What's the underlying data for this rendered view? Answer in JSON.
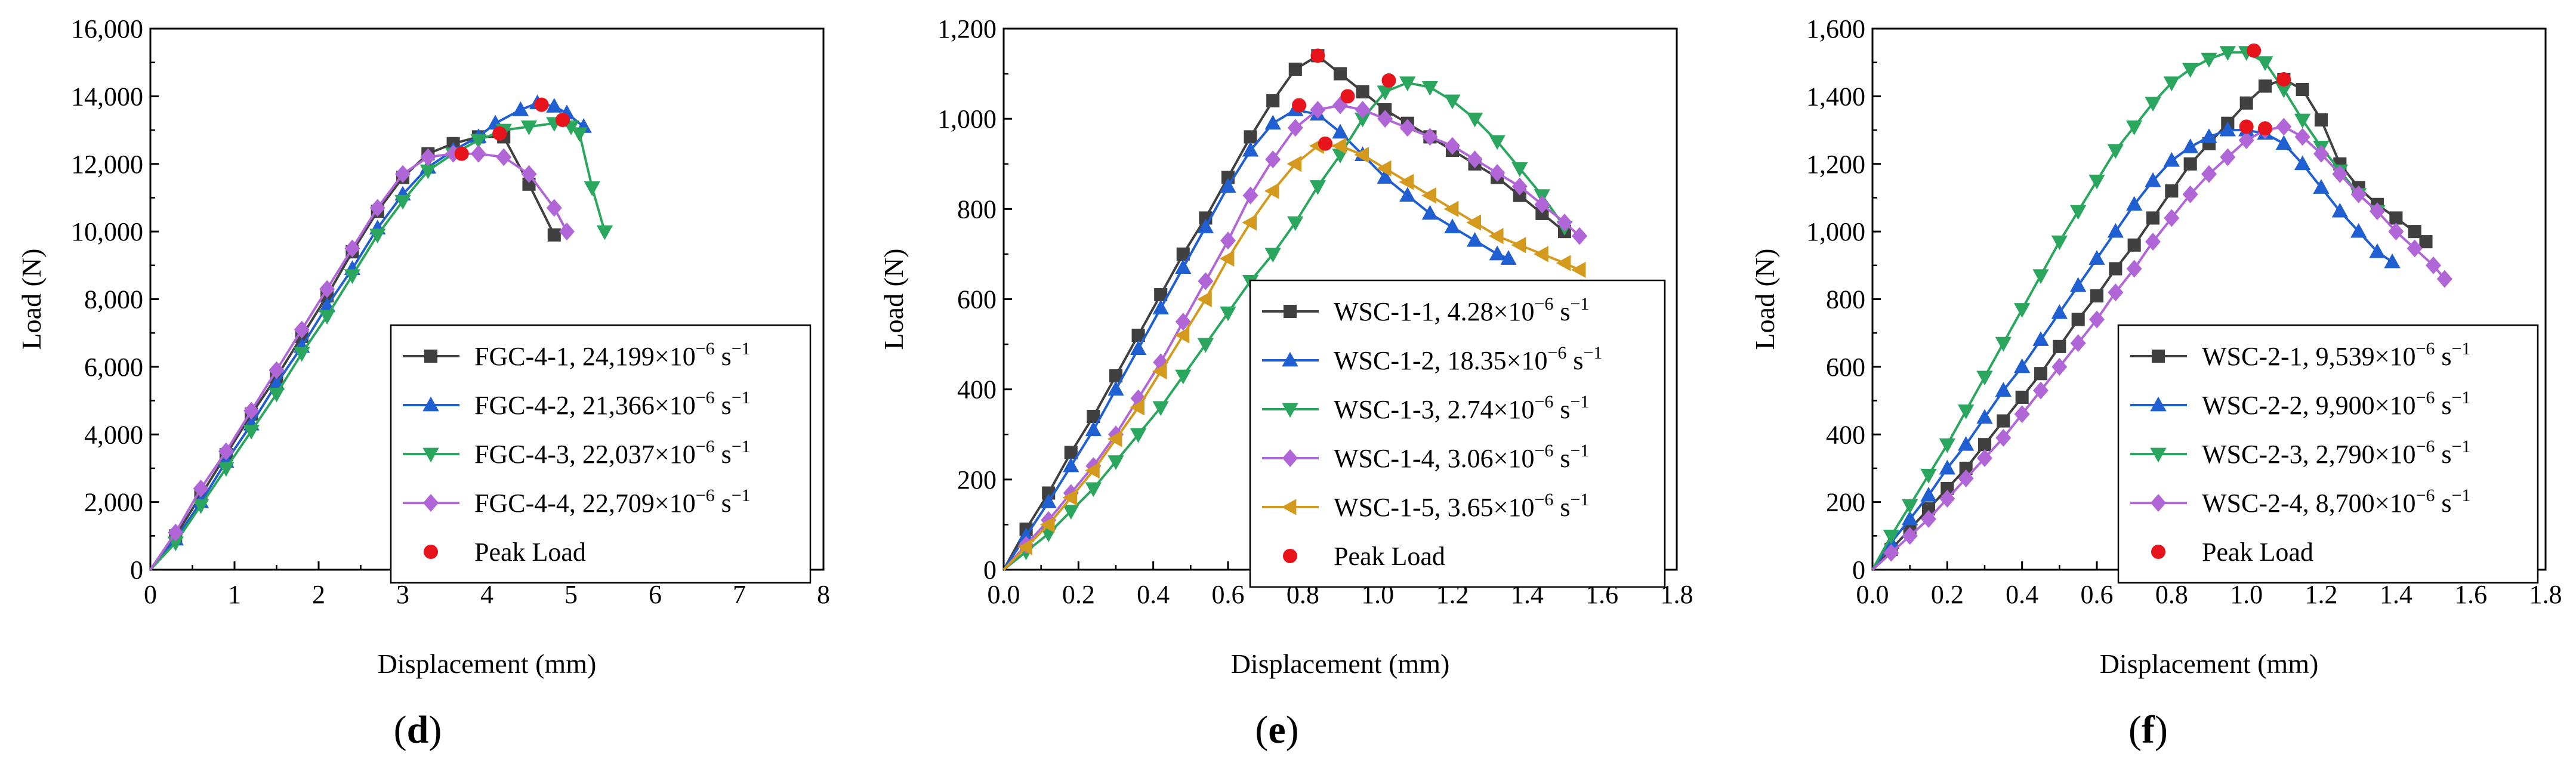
{
  "chart_data": [
    {
      "type": "line",
      "panel_label": "d",
      "xlabel": "Displacement (mm)",
      "ylabel": "Load (N)",
      "xlim": [
        0,
        8
      ],
      "ylim": [
        0,
        16000
      ],
      "xticks": [
        "0",
        "1",
        "2",
        "3",
        "4",
        "5",
        "6",
        "7",
        "8"
      ],
      "yticks": [
        "0",
        "2,000",
        "4,000",
        "6,000",
        "8,000",
        "10,000",
        "12,000",
        "14,000",
        "16,000"
      ],
      "legend_position": "bottom-right",
      "series": [
        {
          "name": "FGC-4-1",
          "rate": "24,199",
          "color": "#404040",
          "marker": "square",
          "x": [
            0,
            0.3,
            0.6,
            0.9,
            1.2,
            1.5,
            1.8,
            2.1,
            2.4,
            2.7,
            3.0,
            3.3,
            3.6,
            3.9,
            4.2,
            4.5,
            4.8
          ],
          "y": [
            0,
            1000,
            2200,
            3400,
            4600,
            5700,
            6900,
            8100,
            9400,
            10600,
            11600,
            12300,
            12600,
            12800,
            12800,
            11400,
            9900
          ]
        },
        {
          "name": "FGC-4-2",
          "rate": "21,366",
          "color": "#1f5fd1",
          "marker": "triangle-up",
          "x": [
            0,
            0.3,
            0.6,
            0.9,
            1.2,
            1.5,
            1.8,
            2.1,
            2.4,
            2.7,
            3.0,
            3.3,
            3.6,
            3.9,
            4.1,
            4.4,
            4.6,
            4.8,
            4.95,
            5.15
          ],
          "y": [
            0,
            900,
            2000,
            3200,
            4300,
            5500,
            6600,
            7800,
            8900,
            10100,
            11100,
            11900,
            12400,
            12800,
            13200,
            13600,
            13800,
            13700,
            13500,
            13100
          ]
        },
        {
          "name": "FGC-4-3",
          "rate": "22,037",
          "color": "#2aa65e",
          "marker": "triangle-down",
          "x": [
            0,
            0.3,
            0.6,
            0.9,
            1.2,
            1.5,
            1.8,
            2.1,
            2.4,
            2.7,
            3.0,
            3.3,
            3.6,
            3.9,
            4.2,
            4.5,
            4.8,
            5.0,
            5.1,
            5.25,
            5.4
          ],
          "y": [
            0,
            800,
            1900,
            3000,
            4100,
            5200,
            6400,
            7500,
            8700,
            9900,
            10900,
            11800,
            12300,
            12700,
            13000,
            13100,
            13200,
            13100,
            12900,
            11300,
            10000
          ]
        },
        {
          "name": "FGC-4-4",
          "rate": "22,709",
          "color": "#b066d6",
          "marker": "diamond",
          "x": [
            0,
            0.3,
            0.6,
            0.9,
            1.2,
            1.5,
            1.8,
            2.1,
            2.4,
            2.7,
            3.0,
            3.3,
            3.6,
            3.9,
            4.2,
            4.5,
            4.8,
            4.95
          ],
          "y": [
            0,
            1100,
            2400,
            3500,
            4700,
            5900,
            7100,
            8300,
            9500,
            10700,
            11700,
            12200,
            12300,
            12300,
            12200,
            11700,
            10700,
            10000
          ]
        }
      ],
      "peaks": {
        "name": "Peak Load",
        "color": "#e8141b",
        "x": [
          3.7,
          4.15,
          4.65,
          4.9
        ],
        "y": [
          12300,
          12900,
          13750,
          13300
        ]
      }
    },
    {
      "type": "line",
      "panel_label": "e",
      "xlabel": "Displacement (mm)",
      "ylabel": "Load (N)",
      "xlim": [
        0,
        1.8
      ],
      "ylim": [
        0,
        1200
      ],
      "xticks": [
        "0.0",
        "0.2",
        "0.4",
        "0.6",
        "0.8",
        "1.0",
        "1.2",
        "1.4",
        "1.6",
        "1.8"
      ],
      "yticks": [
        "0",
        "200",
        "400",
        "600",
        "800",
        "1,000",
        "1,200"
      ],
      "legend_position": "bottom-right",
      "series": [
        {
          "name": "WSC-1-1",
          "rate": "4.28",
          "color": "#404040",
          "marker": "square",
          "x": [
            0,
            0.06,
            0.12,
            0.18,
            0.24,
            0.3,
            0.36,
            0.42,
            0.48,
            0.54,
            0.6,
            0.66,
            0.72,
            0.78,
            0.84,
            0.9,
            0.96,
            1.02,
            1.08,
            1.14,
            1.2,
            1.26,
            1.32,
            1.38,
            1.44,
            1.5
          ],
          "y": [
            0,
            90,
            170,
            260,
            340,
            430,
            520,
            610,
            700,
            780,
            870,
            960,
            1040,
            1110,
            1140,
            1100,
            1060,
            1020,
            990,
            960,
            930,
            900,
            870,
            830,
            790,
            750
          ]
        },
        {
          "name": "WSC-1-2",
          "rate": "18.35",
          "color": "#1f5fd1",
          "marker": "triangle-up",
          "x": [
            0,
            0.06,
            0.12,
            0.18,
            0.24,
            0.3,
            0.36,
            0.42,
            0.48,
            0.54,
            0.6,
            0.66,
            0.72,
            0.78,
            0.84,
            0.9,
            0.96,
            1.02,
            1.08,
            1.14,
            1.2,
            1.26,
            1.32,
            1.35
          ],
          "y": [
            0,
            75,
            150,
            230,
            310,
            400,
            490,
            580,
            670,
            760,
            850,
            930,
            990,
            1020,
            1010,
            970,
            920,
            870,
            830,
            790,
            760,
            730,
            700,
            690
          ]
        },
        {
          "name": "WSC-1-3",
          "rate": "2.74",
          "color": "#2aa65e",
          "marker": "triangle-down",
          "x": [
            0,
            0.06,
            0.12,
            0.18,
            0.24,
            0.3,
            0.36,
            0.42,
            0.48,
            0.54,
            0.6,
            0.66,
            0.72,
            0.78,
            0.84,
            0.9,
            0.96,
            1.02,
            1.08,
            1.14,
            1.2,
            1.26,
            1.32,
            1.38,
            1.44,
            1.5
          ],
          "y": [
            0,
            40,
            80,
            130,
            180,
            240,
            300,
            360,
            430,
            500,
            570,
            640,
            700,
            770,
            850,
            920,
            1000,
            1060,
            1080,
            1070,
            1040,
            1000,
            950,
            890,
            830,
            760
          ]
        },
        {
          "name": "WSC-1-4",
          "rate": "3.06",
          "color": "#b066d6",
          "marker": "diamond",
          "x": [
            0,
            0.06,
            0.12,
            0.18,
            0.24,
            0.3,
            0.36,
            0.42,
            0.48,
            0.54,
            0.6,
            0.66,
            0.72,
            0.78,
            0.84,
            0.9,
            0.96,
            1.02,
            1.08,
            1.14,
            1.2,
            1.26,
            1.32,
            1.38,
            1.44,
            1.5,
            1.54
          ],
          "y": [
            0,
            55,
            110,
            170,
            230,
            300,
            380,
            460,
            550,
            640,
            730,
            830,
            910,
            980,
            1020,
            1030,
            1020,
            1000,
            980,
            960,
            940,
            910,
            880,
            850,
            810,
            770,
            740
          ]
        },
        {
          "name": "WSC-1-5",
          "rate": "3.65",
          "color": "#d49a1e",
          "marker": "triangle-left",
          "x": [
            0,
            0.06,
            0.12,
            0.18,
            0.24,
            0.3,
            0.36,
            0.42,
            0.48,
            0.54,
            0.6,
            0.66,
            0.72,
            0.78,
            0.84,
            0.9,
            0.96,
            1.02,
            1.08,
            1.14,
            1.2,
            1.26,
            1.32,
            1.38,
            1.44,
            1.5,
            1.54
          ],
          "y": [
            0,
            50,
            100,
            160,
            220,
            290,
            360,
            440,
            520,
            600,
            690,
            770,
            840,
            900,
            940,
            940,
            920,
            890,
            860,
            830,
            800,
            770,
            740,
            720,
            700,
            680,
            665
          ]
        }
      ],
      "peaks": {
        "name": "Peak Load",
        "color": "#e8141b",
        "x": [
          0.84,
          0.79,
          1.03,
          0.92,
          0.86
        ],
        "y": [
          1140,
          1030,
          1085,
          1050,
          945
        ]
      }
    },
    {
      "type": "line",
      "panel_label": "f",
      "xlabel": "Displacement (mm)",
      "ylabel": "Load (N)",
      "xlim": [
        0,
        1.8
      ],
      "ylim": [
        0,
        1600
      ],
      "xticks": [
        "0.0",
        "0.2",
        "0.4",
        "0.6",
        "0.8",
        "1.0",
        "1.2",
        "1.4",
        "1.6",
        "1.8"
      ],
      "yticks": [
        "0",
        "200",
        "400",
        "600",
        "800",
        "1,000",
        "1,200",
        "1,400",
        "1,600"
      ],
      "legend_position": "bottom-right",
      "series": [
        {
          "name": "WSC-2-1",
          "rate": "9,539",
          "color": "#404040",
          "marker": "square",
          "x": [
            0,
            0.05,
            0.1,
            0.15,
            0.2,
            0.25,
            0.3,
            0.35,
            0.4,
            0.45,
            0.5,
            0.55,
            0.6,
            0.65,
            0.7,
            0.75,
            0.8,
            0.85,
            0.9,
            0.95,
            1.0,
            1.05,
            1.1,
            1.15,
            1.2,
            1.25,
            1.3,
            1.35,
            1.4,
            1.45,
            1.48
          ],
          "y": [
            0,
            60,
            120,
            180,
            240,
            300,
            370,
            440,
            510,
            580,
            660,
            740,
            810,
            890,
            960,
            1040,
            1120,
            1200,
            1260,
            1320,
            1380,
            1430,
            1450,
            1420,
            1330,
            1200,
            1130,
            1080,
            1040,
            1000,
            970
          ]
        },
        {
          "name": "WSC-2-2",
          "rate": "9,900",
          "color": "#1f5fd1",
          "marker": "triangle-up",
          "x": [
            0,
            0.05,
            0.1,
            0.15,
            0.2,
            0.25,
            0.3,
            0.35,
            0.4,
            0.45,
            0.5,
            0.55,
            0.6,
            0.65,
            0.7,
            0.75,
            0.8,
            0.85,
            0.9,
            0.95,
            1.0,
            1.05,
            1.1,
            1.15,
            1.2,
            1.25,
            1.3,
            1.35,
            1.39
          ],
          "y": [
            0,
            80,
            150,
            220,
            300,
            370,
            450,
            530,
            600,
            680,
            760,
            840,
            920,
            1000,
            1080,
            1150,
            1210,
            1250,
            1280,
            1300,
            1300,
            1290,
            1260,
            1200,
            1130,
            1060,
            1000,
            940,
            910
          ]
        },
        {
          "name": "WSC-2-3",
          "rate": "2,790",
          "color": "#2aa65e",
          "marker": "triangle-down",
          "x": [
            0,
            0.05,
            0.1,
            0.15,
            0.2,
            0.25,
            0.3,
            0.35,
            0.4,
            0.45,
            0.5,
            0.55,
            0.6,
            0.65,
            0.7,
            0.75,
            0.8,
            0.85,
            0.9,
            0.95,
            1.0,
            1.05,
            1.1,
            1.15,
            1.2,
            1.25,
            1.3,
            1.35
          ],
          "y": [
            0,
            100,
            190,
            280,
            370,
            470,
            570,
            670,
            770,
            870,
            970,
            1060,
            1150,
            1240,
            1310,
            1380,
            1440,
            1480,
            1510,
            1530,
            1530,
            1500,
            1420,
            1330,
            1250,
            1180,
            1110,
            1060
          ]
        },
        {
          "name": "WSC-2-4",
          "rate": "8,700",
          "color": "#b066d6",
          "marker": "diamond",
          "x": [
            0,
            0.05,
            0.1,
            0.15,
            0.2,
            0.25,
            0.3,
            0.35,
            0.4,
            0.45,
            0.5,
            0.55,
            0.6,
            0.65,
            0.7,
            0.75,
            0.8,
            0.85,
            0.9,
            0.95,
            1.0,
            1.05,
            1.1,
            1.15,
            1.2,
            1.25,
            1.3,
            1.35,
            1.4,
            1.45,
            1.5,
            1.53
          ],
          "y": [
            0,
            50,
            100,
            150,
            210,
            270,
            330,
            390,
            460,
            530,
            600,
            670,
            740,
            820,
            890,
            970,
            1040,
            1110,
            1170,
            1220,
            1270,
            1300,
            1310,
            1280,
            1230,
            1170,
            1110,
            1060,
            1000,
            950,
            900,
            860
          ]
        }
      ],
      "peaks": {
        "name": "Peak Load",
        "color": "#e8141b",
        "x": [
          1.1,
          1.0,
          1.02,
          1.05
        ],
        "y": [
          1450,
          1310,
          1535,
          1305
        ]
      }
    }
  ]
}
